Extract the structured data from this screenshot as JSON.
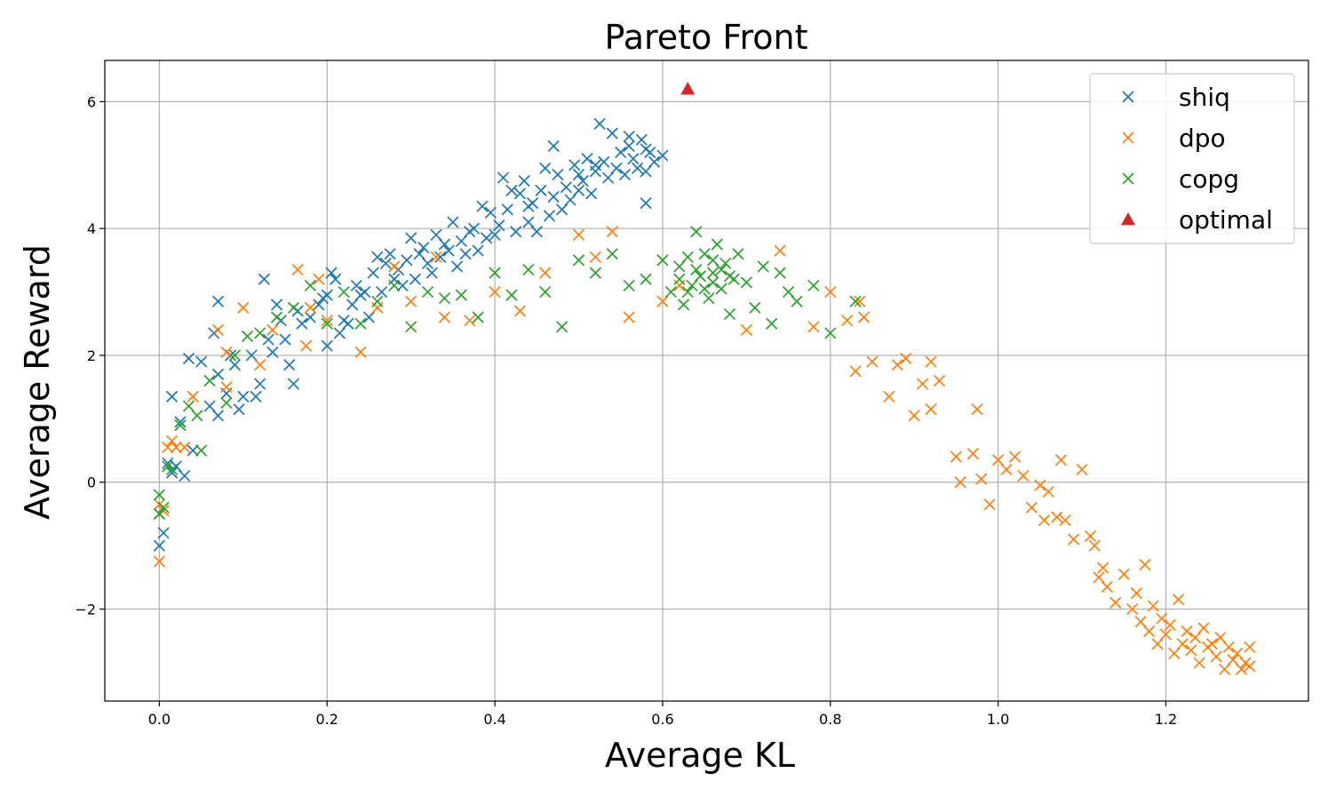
{
  "chart_data": {
    "type": "scatter",
    "title": "Pareto Front",
    "xlabel": "Average KL",
    "ylabel": "Average Reward",
    "xlim": [
      -0.065,
      1.37
    ],
    "ylim": [
      -3.45,
      6.65
    ],
    "xticks": [
      0.0,
      0.2,
      0.4,
      0.6,
      0.8,
      1.0,
      1.2
    ],
    "xtick_labels": [
      "0.0",
      "0.2",
      "0.4",
      "0.6",
      "0.8",
      "1.0",
      "1.2"
    ],
    "yticks": [
      -2,
      0,
      2,
      4,
      6
    ],
    "ytick_labels": [
      "−2",
      "0",
      "2",
      "4",
      "6"
    ],
    "grid": true,
    "legend_position": "top-right",
    "series": [
      {
        "name": "shiq",
        "color": "#1f77b4",
        "marker": "x",
        "points": [
          [
            0.0,
            -1.0
          ],
          [
            0.0,
            -0.5
          ],
          [
            0.005,
            -0.8
          ],
          [
            0.01,
            0.3
          ],
          [
            0.015,
            0.15
          ],
          [
            0.015,
            1.35
          ],
          [
            0.02,
            0.25
          ],
          [
            0.025,
            0.95
          ],
          [
            0.03,
            0.1
          ],
          [
            0.035,
            1.95
          ],
          [
            0.04,
            0.5
          ],
          [
            0.05,
            1.9
          ],
          [
            0.06,
            1.2
          ],
          [
            0.065,
            2.35
          ],
          [
            0.07,
            1.05
          ],
          [
            0.07,
            1.7
          ],
          [
            0.07,
            2.85
          ],
          [
            0.08,
            1.4
          ],
          [
            0.085,
            2.0
          ],
          [
            0.09,
            1.85
          ],
          [
            0.095,
            1.15
          ],
          [
            0.1,
            1.35
          ],
          [
            0.11,
            2.0
          ],
          [
            0.115,
            1.35
          ],
          [
            0.12,
            1.55
          ],
          [
            0.125,
            3.2
          ],
          [
            0.13,
            2.25
          ],
          [
            0.135,
            2.05
          ],
          [
            0.14,
            2.8
          ],
          [
            0.145,
            2.55
          ],
          [
            0.15,
            2.25
          ],
          [
            0.155,
            1.85
          ],
          [
            0.16,
            1.55
          ],
          [
            0.165,
            2.7
          ],
          [
            0.17,
            2.5
          ],
          [
            0.18,
            2.6
          ],
          [
            0.19,
            2.8
          ],
          [
            0.195,
            2.9
          ],
          [
            0.2,
            2.15
          ],
          [
            0.2,
            2.95
          ],
          [
            0.205,
            3.3
          ],
          [
            0.21,
            3.2
          ],
          [
            0.215,
            2.35
          ],
          [
            0.22,
            2.55
          ],
          [
            0.225,
            2.5
          ],
          [
            0.23,
            2.8
          ],
          [
            0.235,
            3.1
          ],
          [
            0.24,
            2.95
          ],
          [
            0.245,
            3.0
          ],
          [
            0.25,
            2.6
          ],
          [
            0.255,
            3.3
          ],
          [
            0.26,
            3.55
          ],
          [
            0.265,
            3.0
          ],
          [
            0.27,
            3.45
          ],
          [
            0.275,
            3.6
          ],
          [
            0.28,
            3.2
          ],
          [
            0.285,
            3.35
          ],
          [
            0.29,
            3.1
          ],
          [
            0.295,
            3.5
          ],
          [
            0.3,
            3.85
          ],
          [
            0.305,
            3.2
          ],
          [
            0.31,
            3.6
          ],
          [
            0.315,
            3.7
          ],
          [
            0.32,
            3.45
          ],
          [
            0.325,
            3.3
          ],
          [
            0.33,
            3.9
          ],
          [
            0.335,
            3.55
          ],
          [
            0.34,
            3.75
          ],
          [
            0.345,
            3.65
          ],
          [
            0.35,
            4.1
          ],
          [
            0.355,
            3.4
          ],
          [
            0.36,
            3.8
          ],
          [
            0.365,
            3.6
          ],
          [
            0.37,
            3.95
          ],
          [
            0.375,
            4.0
          ],
          [
            0.38,
            3.65
          ],
          [
            0.385,
            4.35
          ],
          [
            0.39,
            3.85
          ],
          [
            0.395,
            4.25
          ],
          [
            0.4,
            3.9
          ],
          [
            0.405,
            4.05
          ],
          [
            0.41,
            4.8
          ],
          [
            0.415,
            4.3
          ],
          [
            0.42,
            4.6
          ],
          [
            0.425,
            3.95
          ],
          [
            0.43,
            4.55
          ],
          [
            0.435,
            4.75
          ],
          [
            0.44,
            4.1
          ],
          [
            0.445,
            4.4
          ],
          [
            0.45,
            3.95
          ],
          [
            0.455,
            4.6
          ],
          [
            0.46,
            4.95
          ],
          [
            0.465,
            4.2
          ],
          [
            0.47,
            4.5
          ],
          [
            0.475,
            4.85
          ],
          [
            0.48,
            4.3
          ],
          [
            0.485,
            4.65
          ],
          [
            0.49,
            4.45
          ],
          [
            0.495,
            5.0
          ],
          [
            0.5,
            4.6
          ],
          [
            0.505,
            4.75
          ],
          [
            0.51,
            5.1
          ],
          [
            0.515,
            4.55
          ],
          [
            0.52,
            4.9
          ],
          [
            0.525,
            5.65
          ],
          [
            0.53,
            5.05
          ],
          [
            0.535,
            4.8
          ],
          [
            0.54,
            5.5
          ],
          [
            0.545,
            4.95
          ],
          [
            0.55,
            5.2
          ],
          [
            0.555,
            4.85
          ],
          [
            0.56,
            5.3
          ],
          [
            0.565,
            5.1
          ],
          [
            0.57,
            4.95
          ],
          [
            0.575,
            5.4
          ],
          [
            0.58,
            4.9
          ],
          [
            0.585,
            5.2
          ],
          [
            0.59,
            5.05
          ],
          [
            0.6,
            5.15
          ],
          [
            0.58,
            4.4
          ],
          [
            0.47,
            5.3
          ],
          [
            0.5,
            4.85
          ],
          [
            0.44,
            4.35
          ],
          [
            0.52,
            5.0
          ],
          [
            0.56,
            5.45
          ],
          [
            0.58,
            5.25
          ]
        ]
      },
      {
        "name": "dpo",
        "color": "#ff7f0e",
        "marker": "x",
        "points": [
          [
            0.0,
            -1.25
          ],
          [
            0.0,
            -0.35
          ],
          [
            0.005,
            -0.45
          ],
          [
            0.01,
            0.55
          ],
          [
            0.015,
            0.65
          ],
          [
            0.02,
            0.55
          ],
          [
            0.03,
            0.55
          ],
          [
            0.04,
            1.35
          ],
          [
            0.07,
            2.4
          ],
          [
            0.08,
            1.5
          ],
          [
            0.08,
            2.05
          ],
          [
            0.1,
            2.75
          ],
          [
            0.12,
            1.85
          ],
          [
            0.135,
            2.4
          ],
          [
            0.165,
            3.35
          ],
          [
            0.175,
            2.15
          ],
          [
            0.18,
            2.75
          ],
          [
            0.19,
            3.2
          ],
          [
            0.2,
            2.55
          ],
          [
            0.24,
            2.05
          ],
          [
            0.26,
            2.75
          ],
          [
            0.28,
            3.4
          ],
          [
            0.3,
            2.85
          ],
          [
            0.33,
            3.55
          ],
          [
            0.34,
            2.6
          ],
          [
            0.37,
            2.55
          ],
          [
            0.4,
            3.0
          ],
          [
            0.43,
            2.7
          ],
          [
            0.46,
            3.3
          ],
          [
            0.5,
            3.9
          ],
          [
            0.52,
            3.55
          ],
          [
            0.54,
            3.95
          ],
          [
            0.56,
            2.6
          ],
          [
            0.6,
            2.85
          ],
          [
            0.62,
            3.1
          ],
          [
            0.7,
            2.4
          ],
          [
            0.74,
            3.65
          ],
          [
            0.78,
            2.45
          ],
          [
            0.8,
            3.0
          ],
          [
            0.82,
            2.55
          ],
          [
            0.83,
            1.75
          ],
          [
            0.835,
            2.85
          ],
          [
            0.84,
            2.6
          ],
          [
            0.85,
            1.9
          ],
          [
            0.87,
            1.35
          ],
          [
            0.88,
            1.85
          ],
          [
            0.89,
            1.95
          ],
          [
            0.9,
            1.05
          ],
          [
            0.91,
            1.55
          ],
          [
            0.92,
            1.15
          ],
          [
            0.93,
            1.6
          ],
          [
            0.95,
            0.4
          ],
          [
            0.955,
            0.0
          ],
          [
            0.97,
            0.45
          ],
          [
            0.975,
            1.15
          ],
          [
            0.98,
            0.05
          ],
          [
            0.99,
            -0.35
          ],
          [
            1.0,
            0.35
          ],
          [
            1.01,
            0.2
          ],
          [
            1.02,
            0.4
          ],
          [
            1.03,
            0.1
          ],
          [
            1.04,
            -0.4
          ],
          [
            1.05,
            -0.05
          ],
          [
            1.055,
            -0.6
          ],
          [
            1.06,
            -0.15
          ],
          [
            1.07,
            -0.55
          ],
          [
            1.075,
            0.35
          ],
          [
            1.08,
            -0.6
          ],
          [
            1.09,
            -0.9
          ],
          [
            1.1,
            0.2
          ],
          [
            1.11,
            -0.85
          ],
          [
            1.115,
            -1.0
          ],
          [
            1.12,
            -1.5
          ],
          [
            1.125,
            -1.35
          ],
          [
            1.13,
            -1.65
          ],
          [
            1.14,
            -1.9
          ],
          [
            1.15,
            -1.45
          ],
          [
            1.16,
            -2.0
          ],
          [
            1.165,
            -1.75
          ],
          [
            1.17,
            -2.2
          ],
          [
            1.175,
            -1.3
          ],
          [
            1.18,
            -2.35
          ],
          [
            1.185,
            -1.95
          ],
          [
            1.19,
            -2.55
          ],
          [
            1.195,
            -2.15
          ],
          [
            1.2,
            -2.4
          ],
          [
            1.205,
            -2.25
          ],
          [
            1.21,
            -2.7
          ],
          [
            1.215,
            -1.85
          ],
          [
            1.22,
            -2.55
          ],
          [
            1.225,
            -2.35
          ],
          [
            1.23,
            -2.65
          ],
          [
            1.235,
            -2.45
          ],
          [
            1.24,
            -2.85
          ],
          [
            1.245,
            -2.3
          ],
          [
            1.25,
            -2.6
          ],
          [
            1.255,
            -2.55
          ],
          [
            1.26,
            -2.75
          ],
          [
            1.265,
            -2.45
          ],
          [
            1.27,
            -2.95
          ],
          [
            1.275,
            -2.6
          ],
          [
            1.28,
            -2.8
          ],
          [
            1.285,
            -2.7
          ],
          [
            1.29,
            -2.95
          ],
          [
            1.295,
            -2.85
          ],
          [
            1.3,
            -2.6
          ],
          [
            1.3,
            -2.9
          ],
          [
            0.92,
            1.9
          ]
        ]
      },
      {
        "name": "copg",
        "color": "#2ca02c",
        "marker": "x",
        "points": [
          [
            0.0,
            -0.2
          ],
          [
            0.0,
            -0.5
          ],
          [
            0.005,
            -0.4
          ],
          [
            0.01,
            0.25
          ],
          [
            0.015,
            0.2
          ],
          [
            0.025,
            0.9
          ],
          [
            0.035,
            1.2
          ],
          [
            0.045,
            1.05
          ],
          [
            0.05,
            0.5
          ],
          [
            0.06,
            1.6
          ],
          [
            0.08,
            1.25
          ],
          [
            0.09,
            2.0
          ],
          [
            0.105,
            2.3
          ],
          [
            0.12,
            2.35
          ],
          [
            0.14,
            2.6
          ],
          [
            0.16,
            2.75
          ],
          [
            0.18,
            3.1
          ],
          [
            0.2,
            2.5
          ],
          [
            0.22,
            3.0
          ],
          [
            0.24,
            2.5
          ],
          [
            0.26,
            2.85
          ],
          [
            0.28,
            3.1
          ],
          [
            0.3,
            2.45
          ],
          [
            0.32,
            3.0
          ],
          [
            0.34,
            2.9
          ],
          [
            0.36,
            2.95
          ],
          [
            0.38,
            2.6
          ],
          [
            0.4,
            3.3
          ],
          [
            0.42,
            2.95
          ],
          [
            0.44,
            3.35
          ],
          [
            0.46,
            3.0
          ],
          [
            0.48,
            2.45
          ],
          [
            0.5,
            3.5
          ],
          [
            0.52,
            3.3
          ],
          [
            0.54,
            3.6
          ],
          [
            0.56,
            3.1
          ],
          [
            0.58,
            3.2
          ],
          [
            0.6,
            3.5
          ],
          [
            0.61,
            3.0
          ],
          [
            0.62,
            3.4
          ],
          [
            0.625,
            2.8
          ],
          [
            0.63,
            3.55
          ],
          [
            0.635,
            3.1
          ],
          [
            0.64,
            3.95
          ],
          [
            0.645,
            3.25
          ],
          [
            0.65,
            3.6
          ],
          [
            0.655,
            2.9
          ],
          [
            0.66,
            3.3
          ],
          [
            0.665,
            3.75
          ],
          [
            0.67,
            3.05
          ],
          [
            0.675,
            3.45
          ],
          [
            0.68,
            2.65
          ],
          [
            0.685,
            3.2
          ],
          [
            0.69,
            3.6
          ],
          [
            0.7,
            3.15
          ],
          [
            0.71,
            2.75
          ],
          [
            0.72,
            3.4
          ],
          [
            0.73,
            2.5
          ],
          [
            0.74,
            3.3
          ],
          [
            0.75,
            3.0
          ],
          [
            0.76,
            2.85
          ],
          [
            0.78,
            3.1
          ],
          [
            0.8,
            2.35
          ],
          [
            0.83,
            2.85
          ],
          [
            0.64,
            3.35
          ],
          [
            0.66,
            3.15
          ],
          [
            0.65,
            3.05
          ],
          [
            0.67,
            3.35
          ],
          [
            0.63,
            3.0
          ],
          [
            0.68,
            3.25
          ],
          [
            0.62,
            3.2
          ],
          [
            0.66,
            3.5
          ]
        ]
      },
      {
        "name": "optimal",
        "color": "#d62728",
        "marker": "triangle",
        "points": [
          [
            0.63,
            6.2
          ]
        ]
      }
    ]
  }
}
